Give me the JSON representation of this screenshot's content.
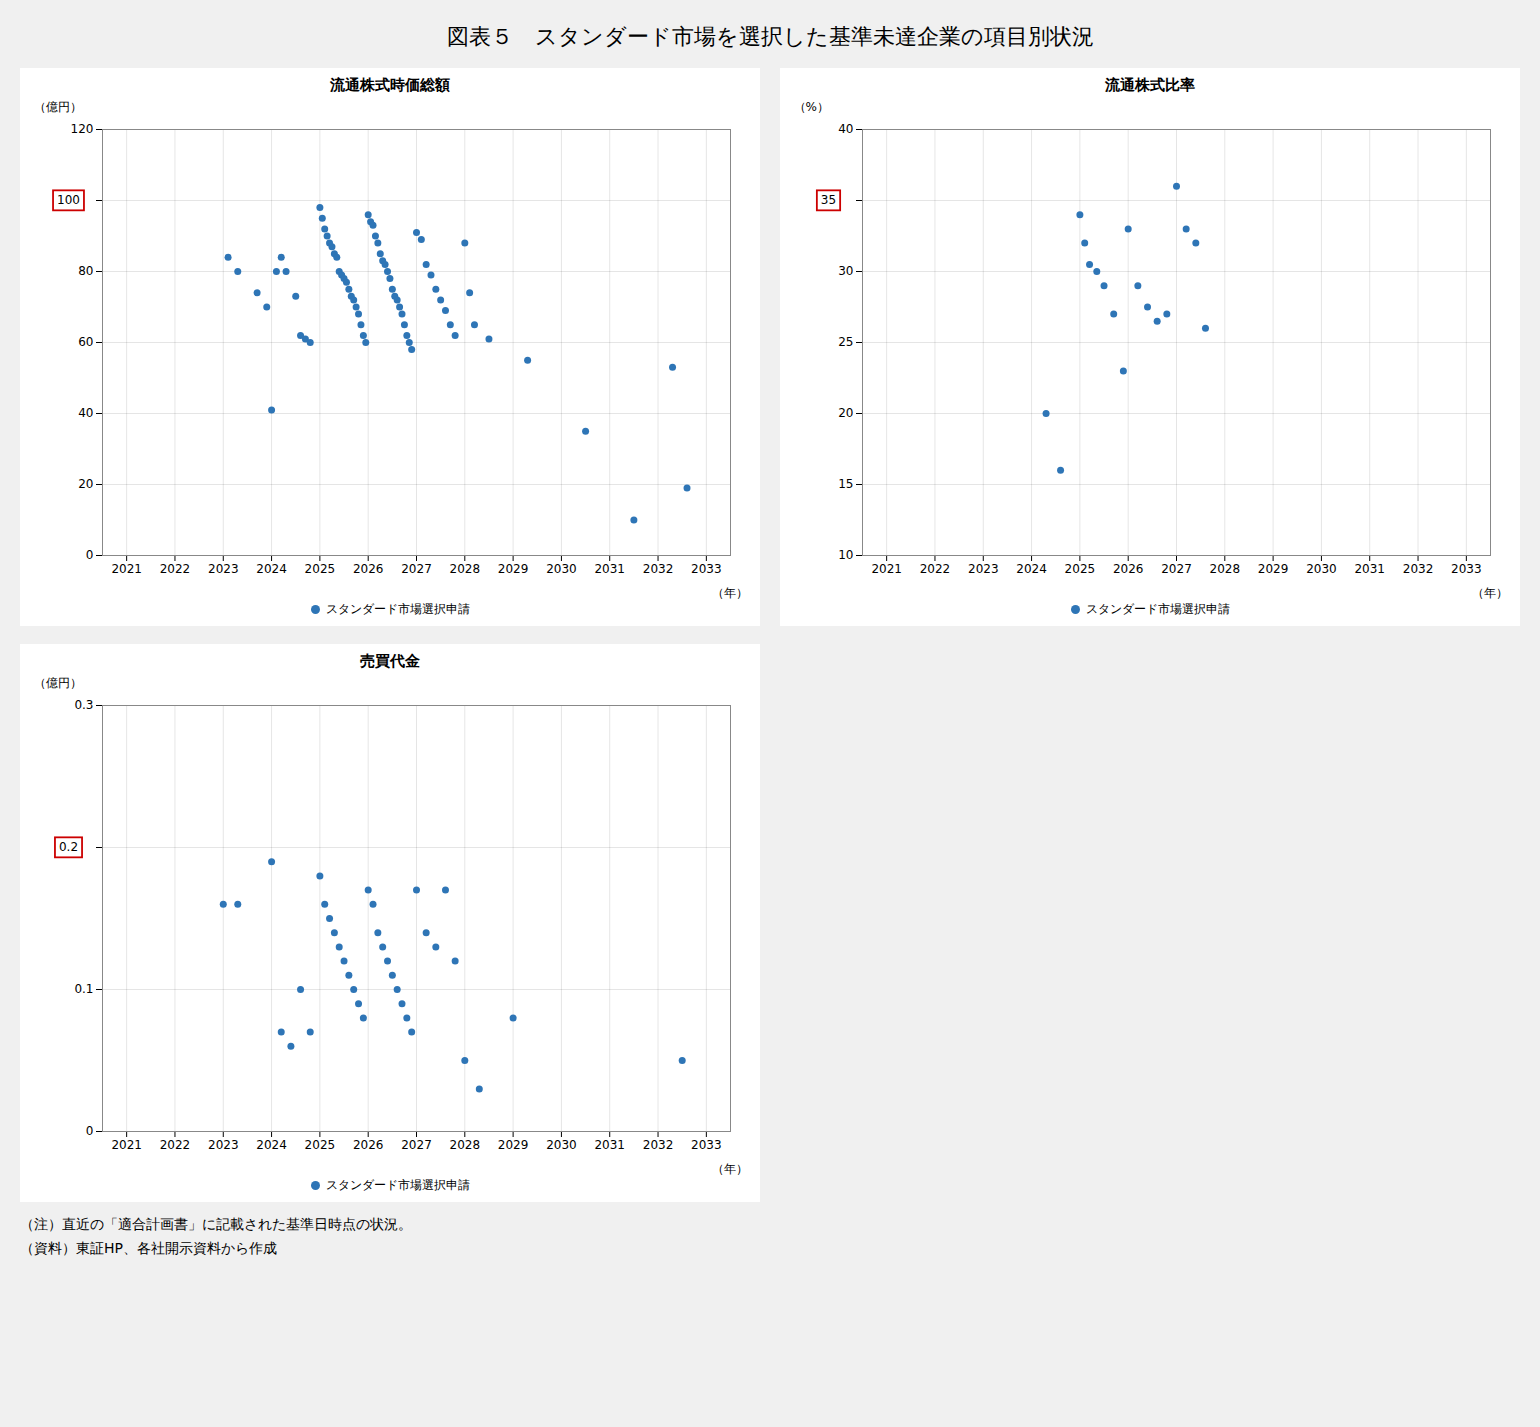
{
  "title": "図表５　スタンダード市場を選択した基準未達企業の項目別状況",
  "annotations": [
    "（注）直近の「適合計画書」に記載された基準日時点の状況。",
    "（資料）東証HP、各社開示資料から作成"
  ],
  "chart_data": [
    {
      "type": "scatter",
      "title": "流通株式時価総額",
      "ylabel": "（億円）",
      "xlabel": "（年）",
      "xlim": [
        2020.5,
        2033.5
      ],
      "ylim": [
        0,
        120
      ],
      "xticks": [
        2021,
        2022,
        2023,
        2024,
        2025,
        2026,
        2027,
        2028,
        2029,
        2030,
        2031,
        2032,
        2033
      ],
      "yticks": [
        0,
        20,
        40,
        60,
        80,
        100,
        120
      ],
      "grid": true,
      "legend": "bottom",
      "annotations": [
        {
          "text": "100",
          "y": 100,
          "color": "#cc0000"
        }
      ],
      "x": [
        2023.1,
        2023.3,
        2023.7,
        2023.9,
        2024.0,
        2024.1,
        2024.2,
        2024.3,
        2024.5,
        2024.6,
        2024.7,
        2024.8,
        2025.0,
        2025.05,
        2025.1,
        2025.15,
        2025.2,
        2025.25,
        2025.3,
        2025.35,
        2025.4,
        2025.45,
        2025.5,
        2025.55,
        2025.6,
        2025.65,
        2025.7,
        2025.75,
        2025.8,
        2025.85,
        2025.9,
        2025.95,
        2026.0,
        2026.05,
        2026.1,
        2026.15,
        2026.2,
        2026.25,
        2026.3,
        2026.35,
        2026.4,
        2026.45,
        2026.5,
        2026.55,
        2026.6,
        2026.65,
        2026.7,
        2026.75,
        2026.8,
        2026.85,
        2026.9,
        2027.0,
        2027.1,
        2027.2,
        2027.3,
        2027.4,
        2027.5,
        2027.6,
        2027.7,
        2027.8,
        2028.0,
        2028.1,
        2028.2,
        2028.5,
        2029.3,
        2030.5,
        2031.5,
        2032.3,
        2032.6
      ],
      "series": [
        {
          "name": "スタンダード市場選択申請",
          "color": "#2e75b6",
          "values": [
            84,
            80,
            74,
            70,
            41,
            80,
            84,
            80,
            73,
            62,
            61,
            60,
            98,
            95,
            92,
            90,
            88,
            87,
            85,
            84,
            80,
            79,
            78,
            77,
            75,
            73,
            72,
            70,
            68,
            65,
            62,
            60,
            96,
            94,
            93,
            90,
            88,
            85,
            83,
            82,
            80,
            78,
            75,
            73,
            72,
            70,
            68,
            65,
            62,
            60,
            58,
            91,
            89,
            82,
            79,
            75,
            72,
            69,
            65,
            62,
            88,
            74,
            65,
            61,
            55,
            35,
            10,
            53,
            19
          ]
        }
      ]
    },
    {
      "type": "scatter",
      "title": "流通株式比率",
      "ylabel": "（%）",
      "xlabel": "（年）",
      "xlim": [
        2020.5,
        2033.5
      ],
      "ylim": [
        10,
        40
      ],
      "xticks": [
        2021,
        2022,
        2023,
        2024,
        2025,
        2026,
        2027,
        2028,
        2029,
        2030,
        2031,
        2032,
        2033
      ],
      "yticks": [
        10,
        15,
        20,
        25,
        30,
        35,
        40
      ],
      "grid": true,
      "legend": "bottom",
      "annotations": [
        {
          "text": "35",
          "y": 35,
          "color": "#cc0000"
        }
      ],
      "x": [
        2024.3,
        2024.6,
        2025.0,
        2025.1,
        2025.2,
        2025.35,
        2025.5,
        2025.7,
        2025.9,
        2026.0,
        2026.2,
        2026.4,
        2026.6,
        2026.8,
        2027.0,
        2027.2,
        2027.4,
        2027.6
      ],
      "series": [
        {
          "name": "スタンダード市場選択申請",
          "color": "#2e75b6",
          "values": [
            20.0,
            16.0,
            34.0,
            32.0,
            30.5,
            30.0,
            29.0,
            27.0,
            23.0,
            33.0,
            29.0,
            27.5,
            26.5,
            27.0,
            36.0,
            33.0,
            32.0,
            26.0
          ]
        }
      ]
    },
    {
      "type": "scatter",
      "title": "売買代金",
      "ylabel": "（億円）",
      "xlabel": "（年）",
      "xlim": [
        2020.5,
        2033.5
      ],
      "ylim": [
        0,
        0.3
      ],
      "xticks": [
        2021,
        2022,
        2023,
        2024,
        2025,
        2026,
        2027,
        2028,
        2029,
        2030,
        2031,
        2032,
        2033
      ],
      "yticks": [
        0,
        0.1,
        0.2,
        0.3
      ],
      "grid": true,
      "legend": "bottom",
      "annotations": [
        {
          "text": "0.2",
          "y": 0.2,
          "color": "#cc0000"
        }
      ],
      "x": [
        2023.0,
        2023.3,
        2024.0,
        2024.2,
        2024.4,
        2024.6,
        2024.8,
        2025.0,
        2025.1,
        2025.2,
        2025.3,
        2025.4,
        2025.5,
        2025.6,
        2025.7,
        2025.8,
        2025.9,
        2026.0,
        2026.1,
        2026.2,
        2026.3,
        2026.4,
        2026.5,
        2026.6,
        2026.7,
        2026.8,
        2026.9,
        2027.0,
        2027.2,
        2027.4,
        2027.6,
        2027.8,
        2028.0,
        2028.3,
        2029.0,
        2032.5
      ],
      "series": [
        {
          "name": "スタンダード市場選択申請",
          "color": "#2e75b6",
          "values": [
            0.16,
            0.16,
            0.19,
            0.07,
            0.06,
            0.1,
            0.07,
            0.18,
            0.16,
            0.15,
            0.14,
            0.13,
            0.12,
            0.11,
            0.1,
            0.09,
            0.08,
            0.17,
            0.16,
            0.14,
            0.13,
            0.12,
            0.11,
            0.1,
            0.09,
            0.08,
            0.07,
            0.17,
            0.14,
            0.13,
            0.17,
            0.12,
            0.05,
            0.03,
            0.08,
            0.05
          ]
        }
      ]
    }
  ]
}
